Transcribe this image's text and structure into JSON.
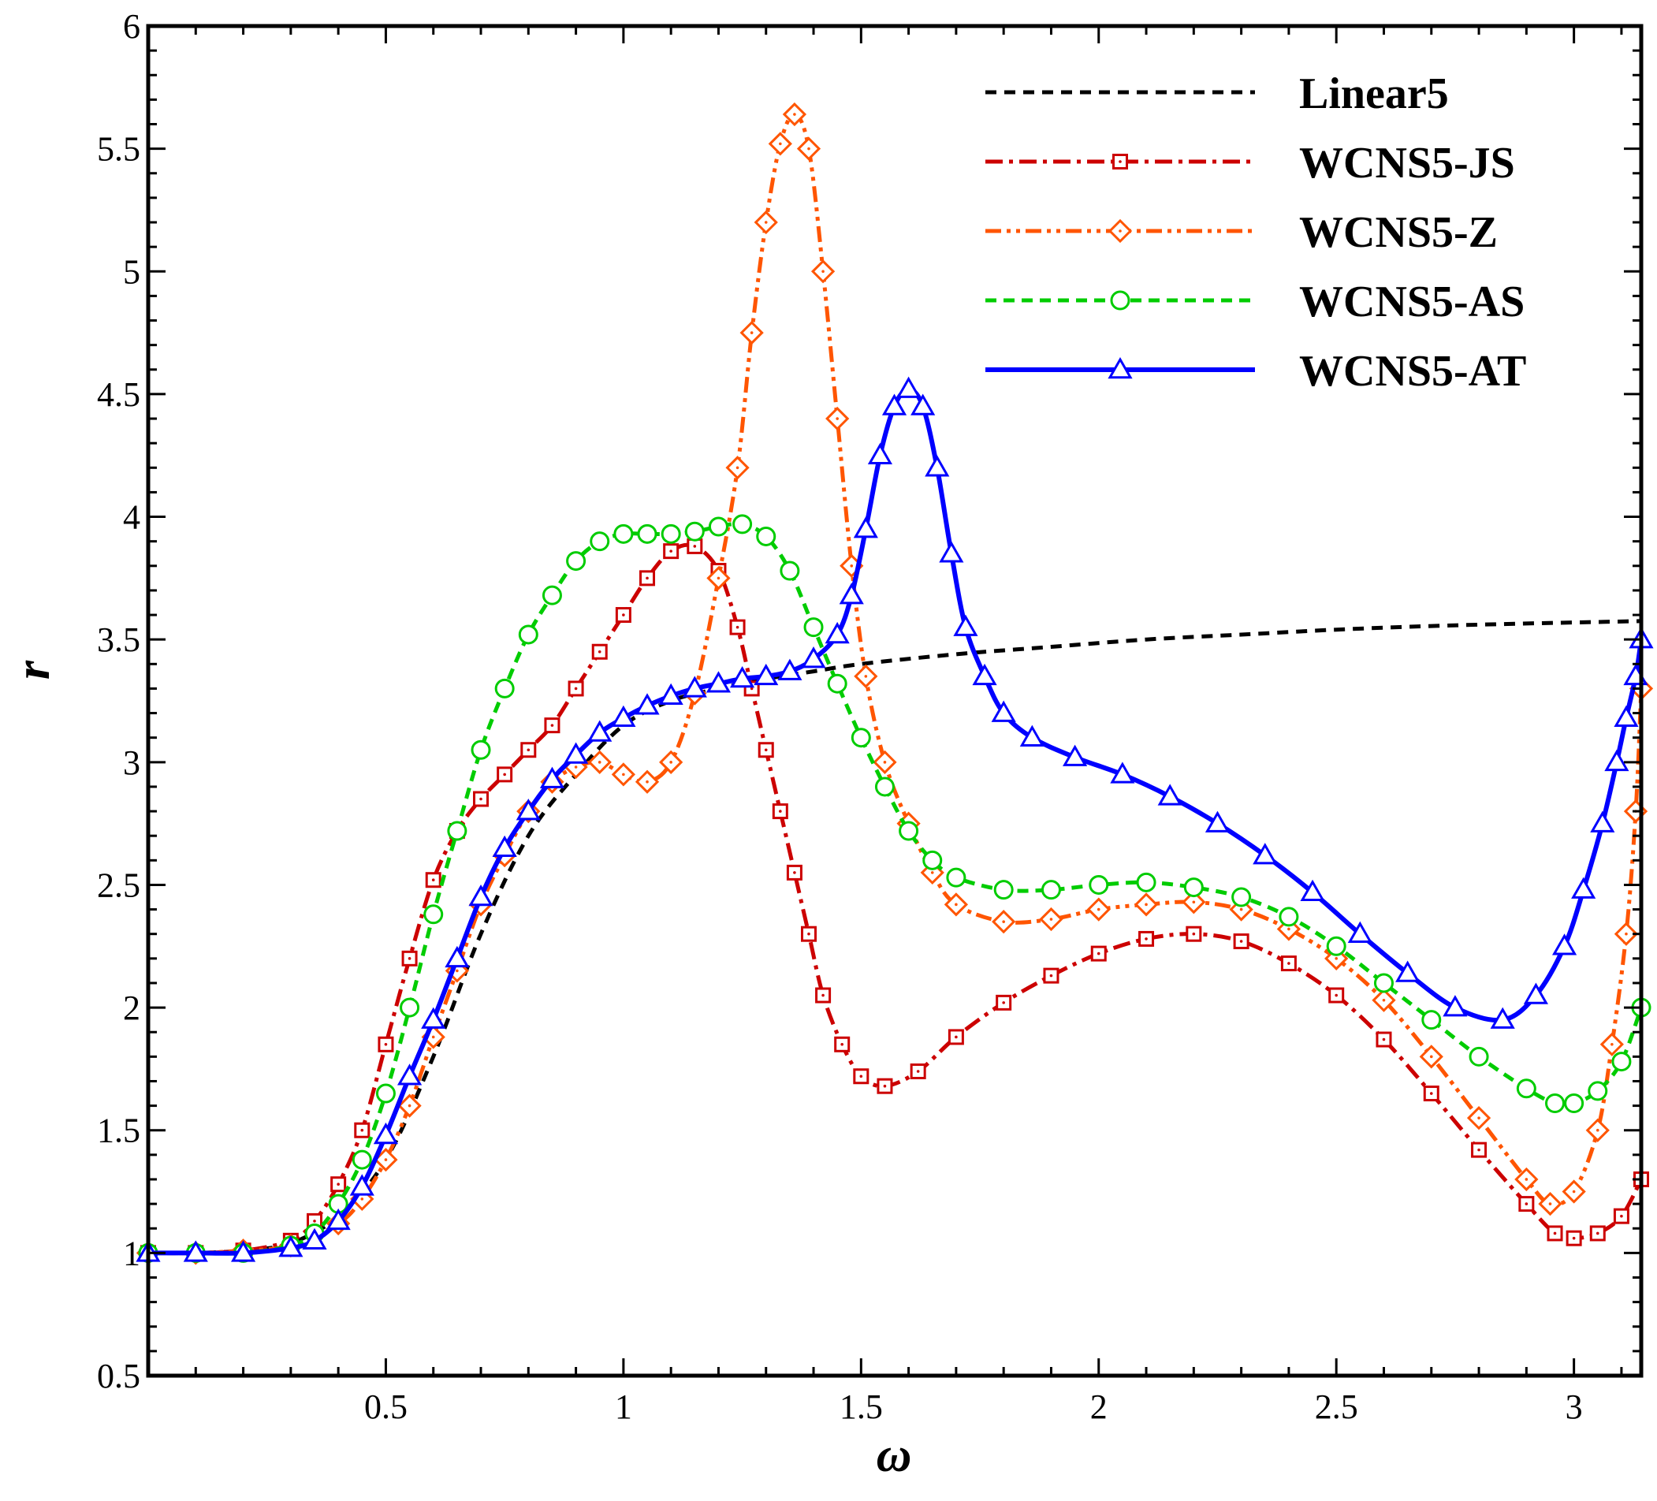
{
  "chart_data": {
    "type": "line",
    "title": "",
    "xlabel": "ω",
    "ylabel": "r",
    "xlim": [
      0,
      3.1416
    ],
    "ylim": [
      0.5,
      6
    ],
    "x_ticks": [
      0.5,
      1,
      1.5,
      2,
      2.5,
      3
    ],
    "x_tick_labels": [
      "0.5",
      "1",
      "1.5",
      "2",
      "2.5",
      "3"
    ],
    "y_ticks": [
      0.5,
      1,
      1.5,
      2,
      2.5,
      3,
      3.5,
      4,
      4.5,
      5,
      5.5,
      6
    ],
    "y_tick_labels": [
      "0.5",
      "1",
      "1.5",
      "2",
      "2.5",
      "3",
      "3.5",
      "4",
      "4.5",
      "5",
      "5.5",
      "6"
    ],
    "legend_position": "top-right",
    "series": [
      {
        "name": "Linear5",
        "color": "#000000",
        "dash": "14,10",
        "marker": "none",
        "x": [
          0,
          0.1,
          0.2,
          0.3,
          0.4,
          0.5,
          0.6,
          0.7,
          0.8,
          0.9,
          1.0,
          1.1,
          1.2,
          1.3,
          1.4,
          1.5,
          1.7,
          1.9,
          2.1,
          2.3,
          2.5,
          2.7,
          2.9,
          3.1416
        ],
        "y": [
          1.0,
          1.0,
          1.01,
          1.04,
          1.15,
          1.38,
          1.8,
          2.3,
          2.7,
          2.95,
          3.15,
          3.25,
          3.3,
          3.34,
          3.37,
          3.4,
          3.44,
          3.47,
          3.5,
          3.52,
          3.54,
          3.555,
          3.565,
          3.575
        ]
      },
      {
        "name": "WCNS5-JS",
        "color": "#cc0000",
        "dash": "22,8,5,8",
        "marker": "square",
        "x": [
          0,
          0.1,
          0.2,
          0.3,
          0.35,
          0.4,
          0.45,
          0.5,
          0.55,
          0.6,
          0.65,
          0.7,
          0.75,
          0.8,
          0.85,
          0.9,
          0.95,
          1.0,
          1.05,
          1.1,
          1.15,
          1.2,
          1.24,
          1.27,
          1.3,
          1.33,
          1.36,
          1.39,
          1.42,
          1.46,
          1.5,
          1.55,
          1.62,
          1.7,
          1.8,
          1.9,
          2.0,
          2.1,
          2.2,
          2.3,
          2.4,
          2.5,
          2.6,
          2.7,
          2.8,
          2.9,
          2.96,
          3.0,
          3.05,
          3.1,
          3.1416
        ],
        "y": [
          1.0,
          1.0,
          1.01,
          1.05,
          1.13,
          1.28,
          1.5,
          1.85,
          2.2,
          2.52,
          2.72,
          2.85,
          2.95,
          3.05,
          3.15,
          3.3,
          3.45,
          3.6,
          3.75,
          3.86,
          3.88,
          3.78,
          3.55,
          3.3,
          3.05,
          2.8,
          2.55,
          2.3,
          2.05,
          1.85,
          1.72,
          1.68,
          1.74,
          1.88,
          2.02,
          2.13,
          2.22,
          2.28,
          2.3,
          2.27,
          2.18,
          2.05,
          1.87,
          1.65,
          1.42,
          1.2,
          1.08,
          1.06,
          1.08,
          1.15,
          1.3
        ]
      },
      {
        "name": "WCNS5-Z",
        "color": "#ff5500",
        "dash": "20,7,5,7,5,7",
        "marker": "diamond",
        "x": [
          0,
          0.1,
          0.2,
          0.3,
          0.4,
          0.45,
          0.5,
          0.55,
          0.6,
          0.65,
          0.7,
          0.75,
          0.8,
          0.85,
          0.9,
          0.95,
          1.0,
          1.05,
          1.1,
          1.15,
          1.2,
          1.24,
          1.27,
          1.3,
          1.33,
          1.36,
          1.39,
          1.42,
          1.45,
          1.48,
          1.51,
          1.55,
          1.6,
          1.65,
          1.7,
          1.8,
          1.9,
          2.0,
          2.1,
          2.2,
          2.3,
          2.4,
          2.5,
          2.6,
          2.7,
          2.8,
          2.9,
          2.95,
          3.0,
          3.05,
          3.08,
          3.11,
          3.13,
          3.1416
        ],
        "y": [
          1.0,
          1.0,
          1.01,
          1.03,
          1.12,
          1.22,
          1.38,
          1.6,
          1.88,
          2.15,
          2.42,
          2.62,
          2.8,
          2.92,
          2.98,
          3.0,
          2.95,
          2.92,
          3.0,
          3.28,
          3.75,
          4.2,
          4.75,
          5.2,
          5.52,
          5.64,
          5.5,
          5.0,
          4.4,
          3.8,
          3.35,
          3.0,
          2.75,
          2.55,
          2.42,
          2.35,
          2.36,
          2.4,
          2.42,
          2.43,
          2.4,
          2.32,
          2.2,
          2.03,
          1.8,
          1.55,
          1.3,
          1.2,
          1.25,
          1.5,
          1.85,
          2.3,
          2.8,
          3.3
        ]
      },
      {
        "name": "WCNS5-AS",
        "color": "#00cc00",
        "dash": "14,9",
        "marker": "circle",
        "x": [
          0,
          0.1,
          0.2,
          0.3,
          0.35,
          0.4,
          0.45,
          0.5,
          0.55,
          0.6,
          0.65,
          0.7,
          0.75,
          0.8,
          0.85,
          0.9,
          0.95,
          1.0,
          1.05,
          1.1,
          1.15,
          1.2,
          1.25,
          1.3,
          1.35,
          1.4,
          1.45,
          1.5,
          1.55,
          1.6,
          1.65,
          1.7,
          1.8,
          1.9,
          2.0,
          2.1,
          2.2,
          2.3,
          2.4,
          2.5,
          2.6,
          2.7,
          2.8,
          2.9,
          2.96,
          3.0,
          3.05,
          3.1,
          3.1416
        ],
        "y": [
          1.0,
          1.0,
          1.0,
          1.03,
          1.08,
          1.2,
          1.38,
          1.65,
          2.0,
          2.38,
          2.72,
          3.05,
          3.3,
          3.52,
          3.68,
          3.82,
          3.9,
          3.93,
          3.93,
          3.93,
          3.94,
          3.96,
          3.97,
          3.92,
          3.78,
          3.55,
          3.32,
          3.1,
          2.9,
          2.72,
          2.6,
          2.53,
          2.48,
          2.48,
          2.5,
          2.51,
          2.49,
          2.45,
          2.37,
          2.25,
          2.1,
          1.95,
          1.8,
          1.67,
          1.61,
          1.61,
          1.66,
          1.78,
          2.0
        ]
      },
      {
        "name": "WCNS5-AT",
        "color": "#0000ff",
        "dash": "",
        "marker": "triangle",
        "x": [
          0,
          0.1,
          0.2,
          0.3,
          0.35,
          0.4,
          0.45,
          0.5,
          0.55,
          0.6,
          0.65,
          0.7,
          0.75,
          0.8,
          0.85,
          0.9,
          0.95,
          1.0,
          1.05,
          1.1,
          1.15,
          1.2,
          1.25,
          1.3,
          1.35,
          1.4,
          1.45,
          1.48,
          1.51,
          1.54,
          1.57,
          1.6,
          1.63,
          1.66,
          1.69,
          1.72,
          1.76,
          1.8,
          1.86,
          1.95,
          2.05,
          2.15,
          2.25,
          2.35,
          2.45,
          2.55,
          2.65,
          2.75,
          2.85,
          2.92,
          2.98,
          3.02,
          3.06,
          3.09,
          3.11,
          3.13,
          3.1416
        ],
        "y": [
          1.0,
          1.0,
          1.0,
          1.02,
          1.05,
          1.13,
          1.27,
          1.48,
          1.72,
          1.95,
          2.2,
          2.45,
          2.65,
          2.8,
          2.93,
          3.03,
          3.12,
          3.18,
          3.23,
          3.27,
          3.3,
          3.32,
          3.34,
          3.35,
          3.37,
          3.42,
          3.52,
          3.68,
          3.95,
          4.25,
          4.45,
          4.52,
          4.45,
          4.2,
          3.85,
          3.55,
          3.35,
          3.2,
          3.1,
          3.02,
          2.95,
          2.86,
          2.75,
          2.62,
          2.47,
          2.3,
          2.14,
          2.0,
          1.95,
          2.05,
          2.25,
          2.48,
          2.75,
          3.0,
          3.18,
          3.35,
          3.5
        ]
      }
    ]
  }
}
